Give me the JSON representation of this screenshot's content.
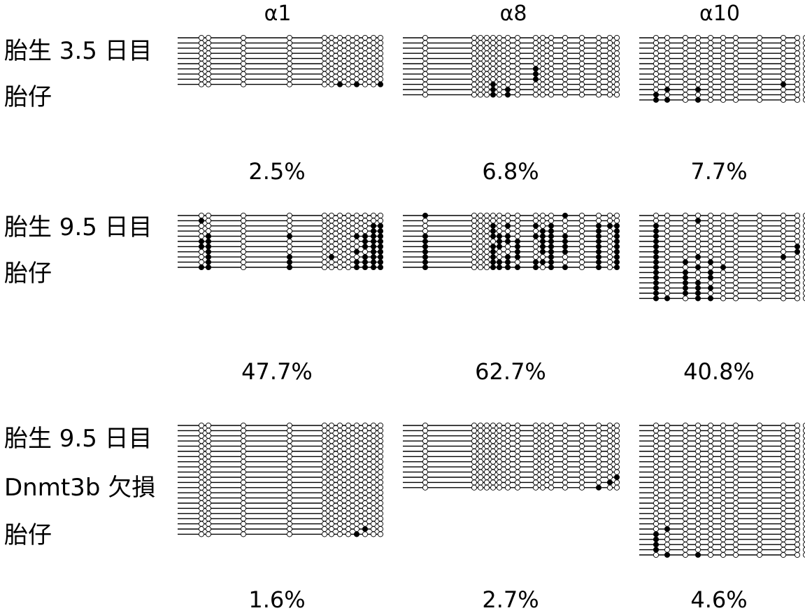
{
  "columns": [
    "α1",
    "α8",
    "α10"
  ],
  "rows": [
    {
      "label_lines": [
        "胎生 3.5 日目",
        "胎仔"
      ],
      "percentages": [
        "2.5%",
        "6.8%",
        "7.7%"
      ],
      "panels": [
        {
          "patterns": [
            "000000000000",
            "000000000000",
            "000000000000",
            "000000000000",
            "000000000000",
            "000000000000",
            "000000000000",
            "000000000000",
            "000000000000",
            "000000101001"
          ]
        },
        {
          "patterns": [
            "0000000000000000",
            "0000000000000000",
            "0000000000000000",
            "0000000000000000",
            "0000000000000000",
            "0000000000000000",
            "0000000010000000",
            "0000000010000000",
            "0000000010000000",
            "0000100000000000",
            "0000101000000000",
            "0000101000000000"
          ]
        },
        {
          "patterns": [
            "000000000000",
            "000000000000",
            "000000000000",
            "000000000000",
            "000000000000",
            "000000000000",
            "000000000000",
            "000000000000",
            "000000000000",
            "000000001000",
            "010100000000",
            "100000000001",
            "110100000000"
          ]
        }
      ]
    },
    {
      "label_lines": [
        "胎生 9.5 日目",
        "胎仔"
      ],
      "percentages": [
        "47.7%",
        "62.7%",
        "40.8%"
      ],
      "panels": [
        {
          "patterns": [
            "000000000000",
            "100000000000",
            "000000000011",
            "000000000011",
            "010100001111",
            "110000000111",
            "110000000111",
            "010000001011",
            "010101000111",
            "010100001111",
            "110100001111"
          ]
        },
        {
          "patterns": [
            "1000000000010000",
            "0000000000000000",
            "0000101010100111",
            "0000100001100101",
            "1000111011110101",
            "1000011101110101",
            "1000110101110101",
            "1000100101110101",
            "1000101100100101",
            "1000111011100101",
            "1000111110110101"
          ]
        },
        {
          "patterns": [
            "000000000000",
            "000100000000",
            "100000000000",
            "100000000000",
            "100000000000",
            "100000000000",
            "100000000101",
            "100000000100",
            "100100001000",
            "101010000000",
            "100101000000",
            "101010000000",
            "101010000000",
            "101100000000",
            "101110000000",
            "101100000000",
            "110110000000"
          ]
        }
      ]
    },
    {
      "label_lines": [
        "胎生 9.5 日目",
        "Dnmt3b 欠損",
        "胎仔"
      ],
      "percentages": [
        "1.6%",
        "2.7%",
        "4.6%"
      ],
      "panels": [
        {
          "patterns": [
            "000000000000",
            "000000000000",
            "000000000000",
            "000000000000",
            "000000000000",
            "000000000000",
            "000000000000",
            "000000000000",
            "000000000000",
            "000000000000",
            "000000000000",
            "000000000000",
            "000000000000",
            "000000000000",
            "000000000000",
            "000000000000",
            "000000000000",
            "000000000000",
            "000000000000",
            "000000000000",
            "000000000100",
            "000000001000"
          ]
        },
        {
          "patterns": [
            "0000000000000000",
            "0000000000000000",
            "0000000000000000",
            "0000000000000000",
            "0000000000000000",
            "0000000000000000",
            "0000000000000000",
            "0000000000000000",
            "0000000000000000",
            "0000000000000000",
            "0000000000000001",
            "0000000000000010",
            "0000000000000100"
          ]
        },
        {
          "patterns": [
            "000000000000",
            "000000000000",
            "000000000000",
            "000000000000",
            "000000000000",
            "000000000000",
            "000000000000",
            "000000000000",
            "000000000000",
            "000000000000",
            "000000000000",
            "000000000000",
            "000000000000",
            "000000000000",
            "000000000000",
            "000000000000",
            "000000000000",
            "000000000000",
            "000000000000",
            "000000000000",
            "010000000000",
            "100000000000",
            "100000000000",
            "100000000000",
            "100000000000",
            "010100000000"
          ]
        }
      ]
    }
  ]
}
